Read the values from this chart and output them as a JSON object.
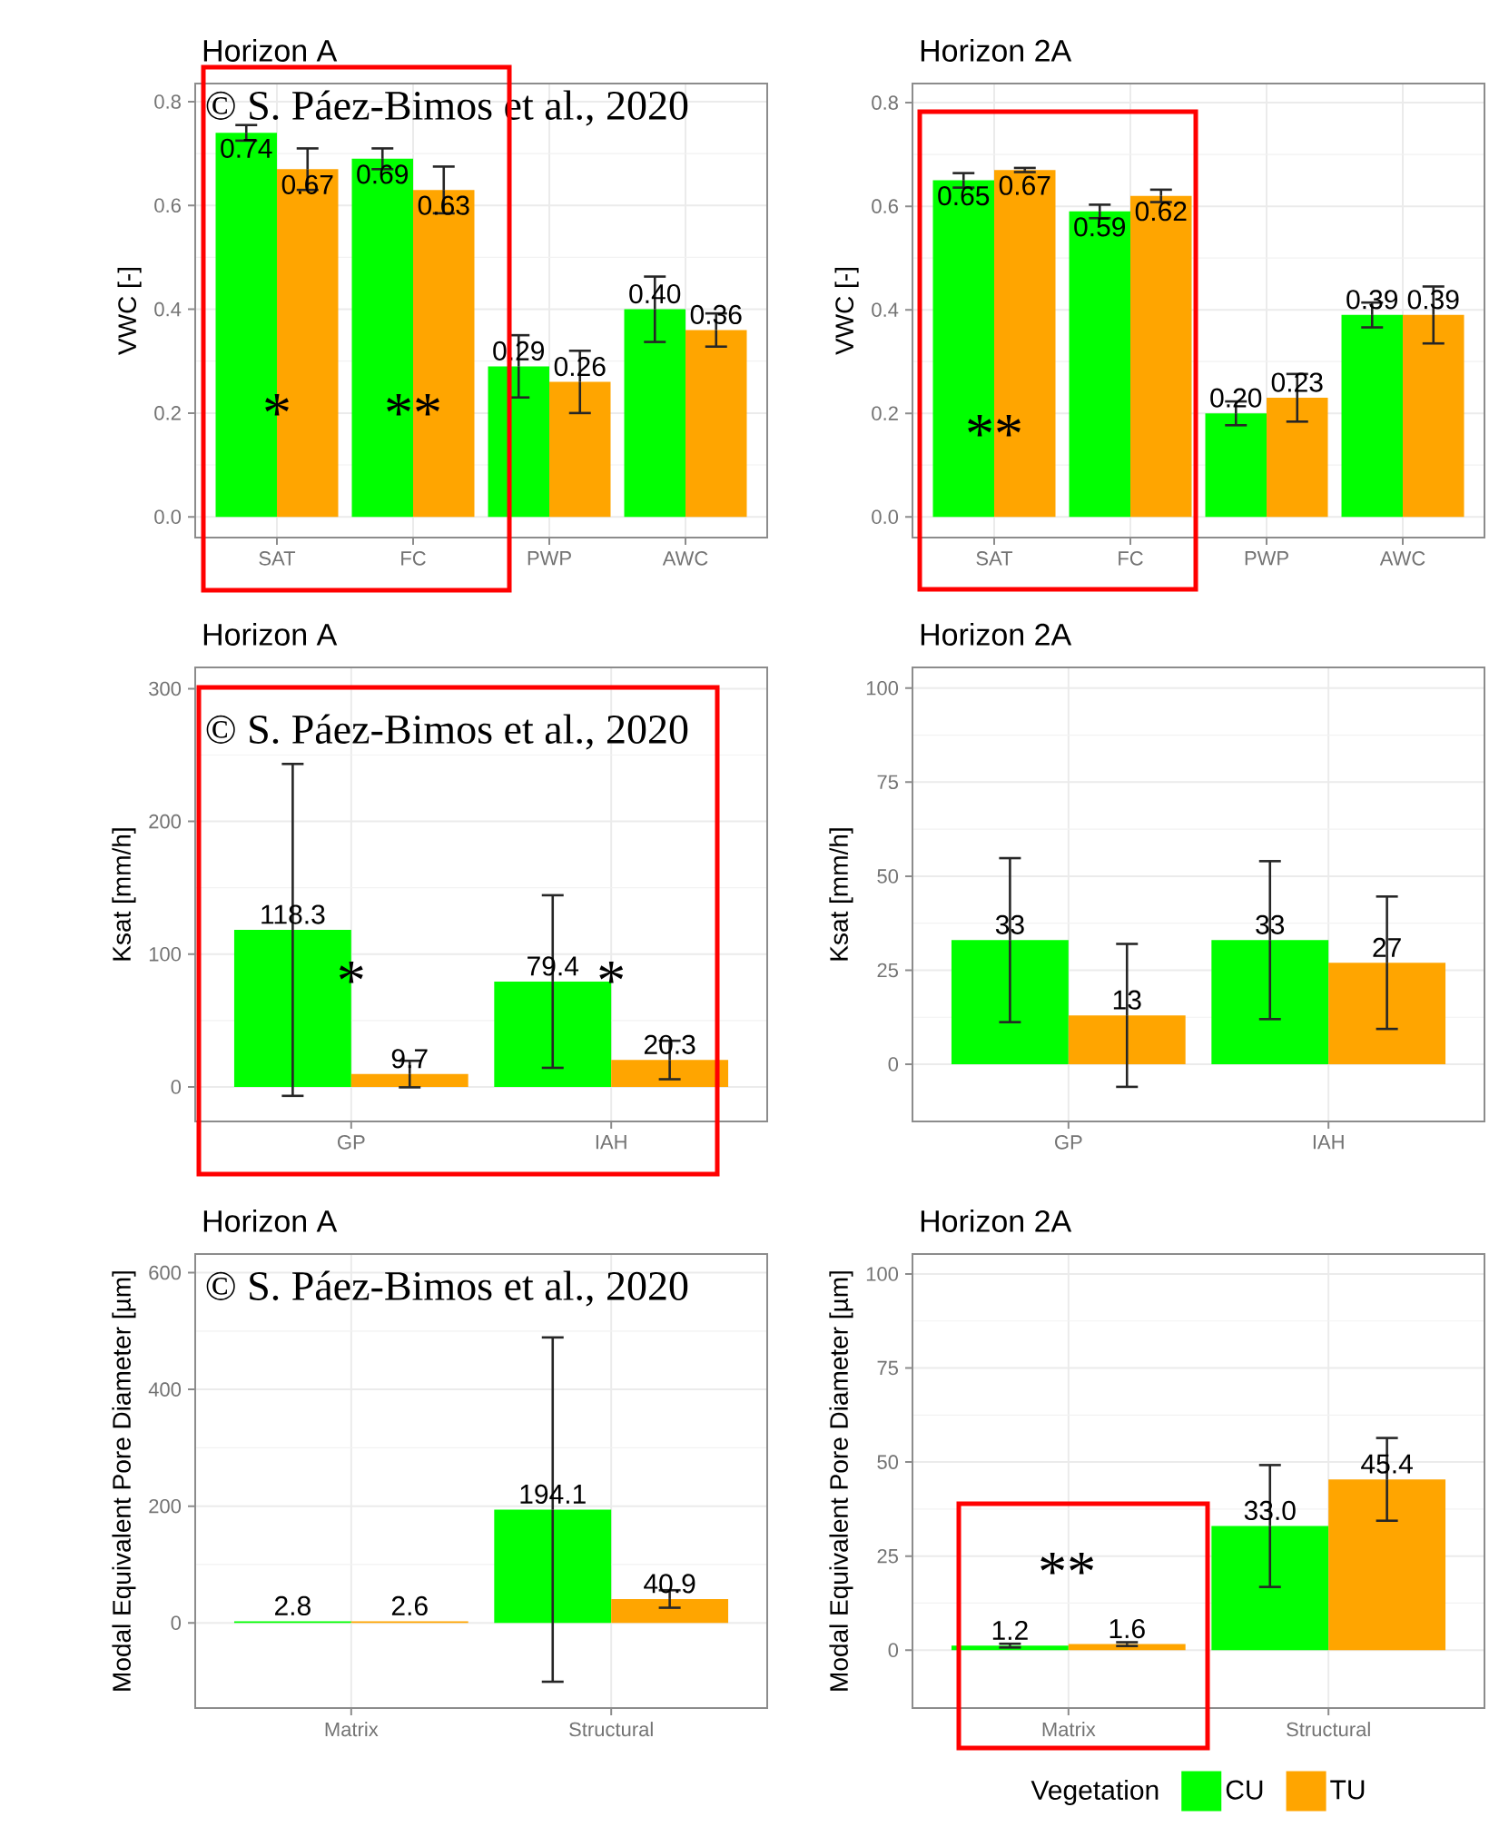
{
  "chart_data": [
    {
      "type": "bar",
      "title": "Horizon A",
      "ylabel": "VWC [-]",
      "categories": [
        "SAT",
        "FC",
        "PWP",
        "AWC"
      ],
      "series": [
        {
          "color": "#00ff00",
          "values": [
            0.74,
            0.69,
            0.29,
            0.4
          ],
          "errors": [
            0.015,
            0.02,
            0.06,
            0.063
          ],
          "value_labels": [
            "0.74",
            "0.69",
            "0.29",
            "0.40"
          ]
        },
        {
          "color": "#ffa500",
          "values": [
            0.67,
            0.63,
            0.26,
            0.36
          ],
          "errors": [
            0.04,
            0.045,
            0.06,
            0.032
          ],
          "value_labels": [
            "0.67",
            "0.63",
            "0.26",
            "0.36"
          ]
        }
      ],
      "ylim": [
        -0.04,
        0.835
      ],
      "yticks": [
        {
          "value": 0,
          "label": "0.0"
        },
        0.2,
        0.4,
        0.6,
        0.8
      ],
      "grid": true,
      "annotations": [
        "© S. Páez-Bimos et al., 2020",
        {
          "text": "*",
          "x": "SAT",
          "y": 0.2
        },
        {
          "text": "**",
          "x": "FC",
          "y": 0.2
        }
      ]
    },
    {
      "type": "bar",
      "title": "Horizon 2A",
      "ylabel": "VWC [-]",
      "categories": [
        "SAT",
        "FC",
        "PWP",
        "AWC"
      ],
      "series": [
        {
          "color": "#00ff00",
          "values": [
            0.65,
            0.59,
            0.2,
            0.39
          ],
          "errors": [
            0.014,
            0.013,
            0.023,
            0.024
          ],
          "value_labels": [
            "0.65",
            "0.59",
            "0.20",
            "0.39"
          ]
        },
        {
          "color": "#ffa500",
          "values": [
            0.67,
            0.62,
            0.23,
            0.39
          ],
          "errors": [
            0.004,
            0.012,
            0.046,
            0.055
          ],
          "value_labels": [
            "0.67",
            "0.62",
            "0.23",
            "0.39"
          ]
        }
      ],
      "ylim": [
        -0.04,
        0.837
      ],
      "yticks": [
        {
          "value": 0,
          "label": "0.0"
        },
        0.2,
        0.4,
        0.6,
        0.8
      ],
      "grid": true,
      "annotations": [
        {
          "text": "**",
          "x": "SAT",
          "y": 0.16
        }
      ]
    },
    {
      "type": "bar",
      "title": "Horizon A",
      "ylabel": "Ksat [mm/h]",
      "categories": [
        "GP",
        "IAH"
      ],
      "series": [
        {
          "color": "#00ff00",
          "values": [
            118.3,
            79.4
          ],
          "errors": [
            125,
            65
          ],
          "value_labels": [
            "118.3",
            "79.4"
          ]
        },
        {
          "color": "#ffa500",
          "values": [
            9.7,
            20.3
          ],
          "errors": [
            10,
            14.5
          ],
          "value_labels": [
            "9.7",
            "20.3"
          ]
        }
      ],
      "ylim": [
        -26,
        316
      ],
      "yticks": [
        0,
        100,
        200,
        300
      ],
      "grid": true,
      "annotations": [
        "© S. Páez-Bimos et al., 2020",
        {
          "text": "*",
          "x": "GP",
          "y": 80
        },
        {
          "text": "*",
          "x": "IAH",
          "y": 80
        }
      ]
    },
    {
      "type": "bar",
      "title": "Horizon 2A",
      "ylabel": "Ksat [mm/h]",
      "categories": [
        "GP",
        "IAH"
      ],
      "series": [
        {
          "color": "#00ff00",
          "values": [
            33,
            33
          ],
          "errors": [
            21.8,
            21
          ],
          "value_labels": [
            "33",
            "33"
          ]
        },
        {
          "color": "#ffa500",
          "values": [
            13,
            27
          ],
          "errors": [
            19,
            17.6
          ],
          "value_labels": [
            "13",
            "27"
          ]
        }
      ],
      "ylim": [
        -15.2,
        105.5
      ],
      "yticks": [
        0,
        25,
        50,
        75,
        100
      ],
      "grid": true
    },
    {
      "type": "bar",
      "title": "Horizon A",
      "ylabel": "Modal Equivalent Pore Diameter [µm]",
      "categories": [
        "Matrix",
        "Structural"
      ],
      "series": [
        {
          "color": "#00ff00",
          "values": [
            2.8,
            194.1
          ],
          "errors": [
            null,
            295
          ],
          "value_labels": [
            "2.8",
            "194.1"
          ]
        },
        {
          "color": "#ffa500",
          "values": [
            2.6,
            40.9
          ],
          "errors": [
            null,
            15
          ],
          "value_labels": [
            "2.6",
            "40.9"
          ]
        }
      ],
      "ylim": [
        -146,
        632
      ],
      "yticks": [
        0,
        200,
        400,
        600
      ],
      "grid": true,
      "annotations": [
        "© S. Páez-Bimos et al., 2020"
      ]
    },
    {
      "type": "bar",
      "title": "Horizon 2A",
      "ylabel": "Modal Equivalent Pore Diameter [µm]",
      "categories": [
        "Matrix",
        "Structural"
      ],
      "series": [
        {
          "name": "CU",
          "color": "#00ff00",
          "values": [
            1.2,
            33.0
          ],
          "errors": [
            0.5,
            16.2
          ],
          "value_labels": [
            "1.2",
            "33.0"
          ]
        },
        {
          "name": "TU",
          "color": "#ffa500",
          "values": [
            1.6,
            45.4
          ],
          "errors": [
            0.5,
            11
          ],
          "value_labels": [
            "1.6",
            "45.4"
          ]
        }
      ],
      "ylim": [
        -15.4,
        105.3
      ],
      "yticks": [
        0,
        25,
        50,
        75,
        100
      ],
      "grid": true,
      "legend": "bottom",
      "legend_title": "Vegetation",
      "annotations": [
        "**"
      ]
    }
  ]
}
